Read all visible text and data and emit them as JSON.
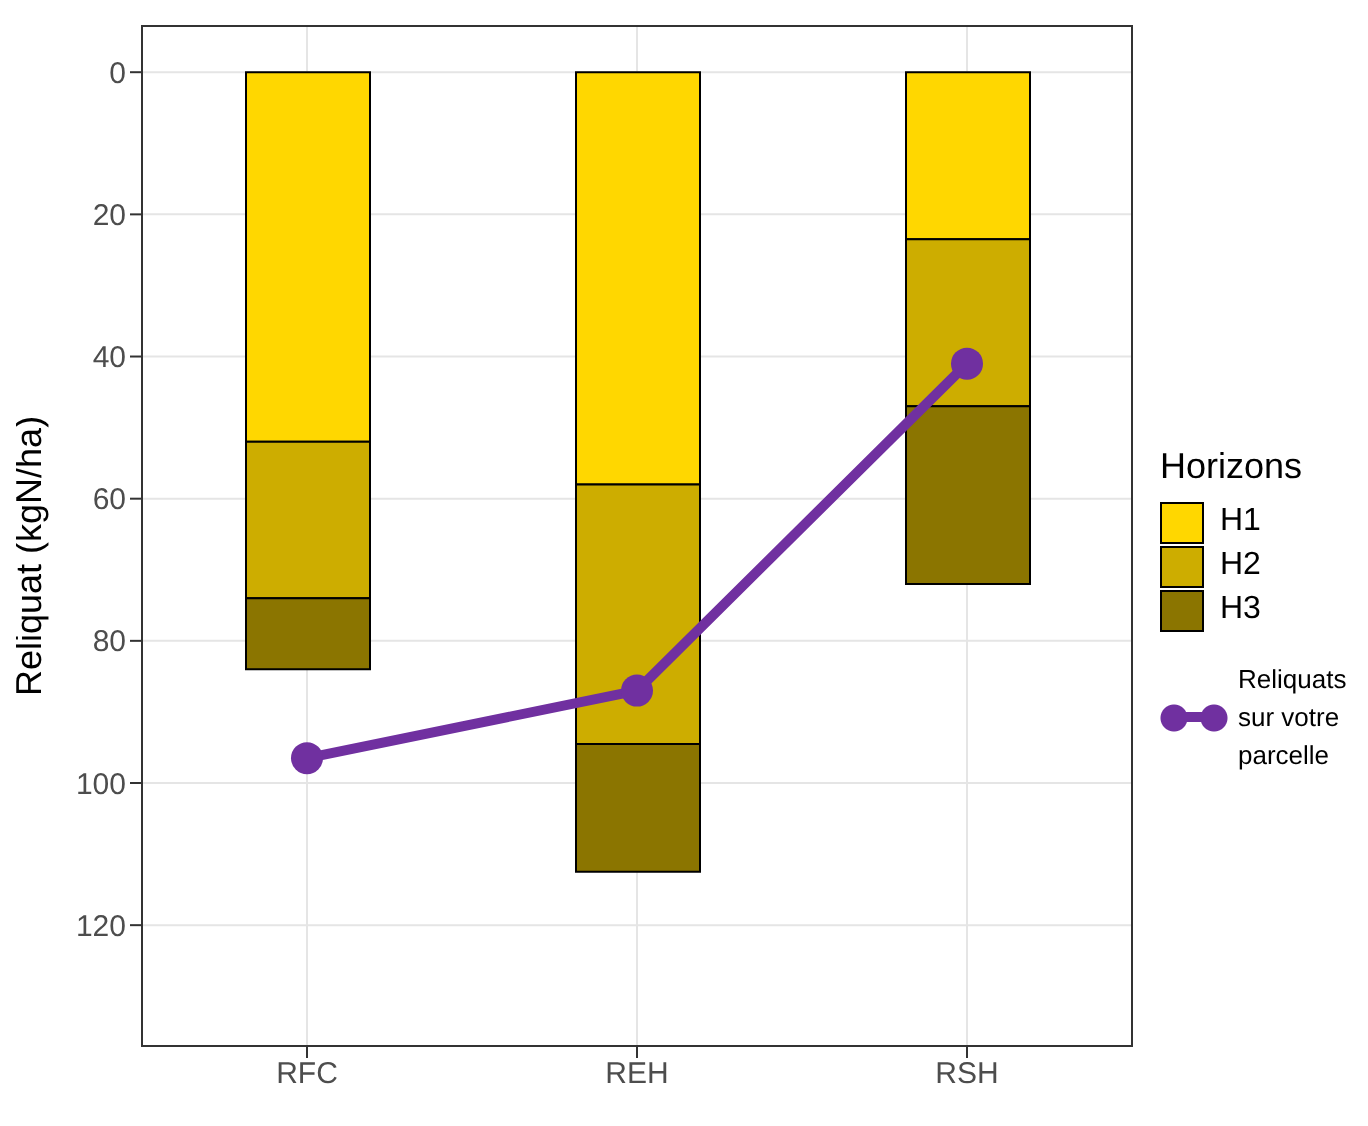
{
  "chart_data": {
    "type": "bar",
    "stacked": true,
    "categories": [
      "RFC",
      "REH",
      "RSH"
    ],
    "ylabel": "Reliquat (kgN/ha)",
    "legend_title": "Horizons",
    "ylim": [
      137,
      -6.5
    ],
    "yticks": [
      0,
      20,
      40,
      60,
      80,
      100,
      120
    ],
    "grid": true,
    "legend": "right",
    "series": [
      {
        "name": "H1",
        "color": "#ffd700",
        "values": [
          52,
          58,
          23.5
        ]
      },
      {
        "name": "H2",
        "color": "#cdad00",
        "values": [
          22,
          36.5,
          23.5
        ]
      },
      {
        "name": "H3",
        "color": "#8b7500",
        "values": [
          10,
          18,
          25
        ]
      },
      {
        "name": "Reliquats sur votre parcelle",
        "type": "line",
        "color": "#7030a0",
        "marker": "circle",
        "values": [
          96.5,
          87,
          41
        ]
      }
    ]
  }
}
